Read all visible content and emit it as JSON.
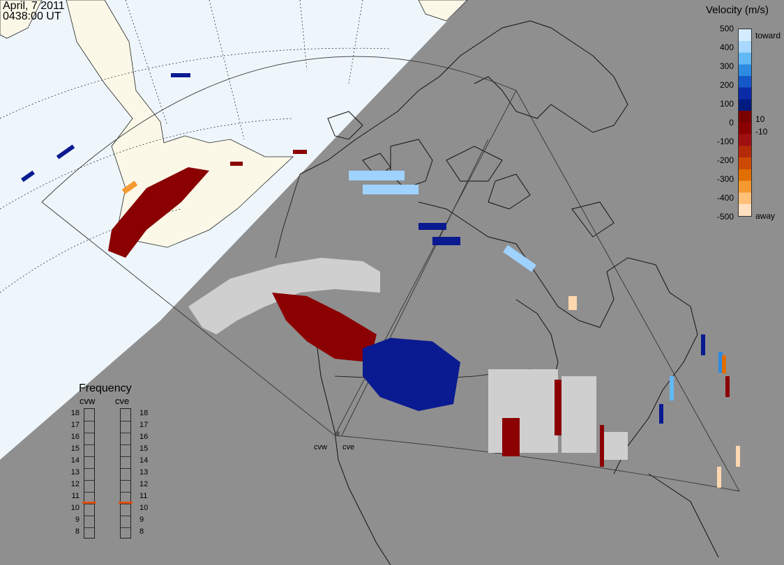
{
  "header": {
    "date": "April, 7 2011",
    "time": "0438:00 UT"
  },
  "colorbar": {
    "title": "Velocity (m/s)",
    "ticks": [
      "500",
      "400",
      "300",
      "200",
      "100",
      "0",
      "-100",
      "-200",
      "-300",
      "-400",
      "-500"
    ],
    "inner_ticks": [
      "10",
      "-10"
    ],
    "end_labels": {
      "top": "toward",
      "bottom": "away"
    },
    "colors": [
      "#d4ecff",
      "#a8d8ff",
      "#62b8f5",
      "#2d8be0",
      "#1558c8",
      "#0a2aa8",
      "#001a80",
      "#7a0000",
      "#8b0000",
      "#a01010",
      "#b42a08",
      "#cc4a00",
      "#e06e00",
      "#f59a30",
      "#ffc07a",
      "#ffe0c0"
    ]
  },
  "frequency": {
    "title": "Frequency",
    "columns": [
      {
        "name": "cvw",
        "current_mhz": 11
      },
      {
        "name": "cve",
        "current_mhz": 11
      }
    ],
    "levels": [
      "18",
      "17",
      "16",
      "15",
      "14",
      "13",
      "12",
      "11",
      "10",
      "9",
      "8"
    ],
    "indicator_color": "#e05010"
  },
  "sites": {
    "west": "cvw",
    "east": "cve"
  },
  "map_colors": {
    "night": "#8f8f8f",
    "day_ocean": "#eef6fc",
    "day_land": "#fbf8e8",
    "away": "#8b0000",
    "toward": "#0a1a90",
    "ground_scatter": "#cfcfcf"
  }
}
